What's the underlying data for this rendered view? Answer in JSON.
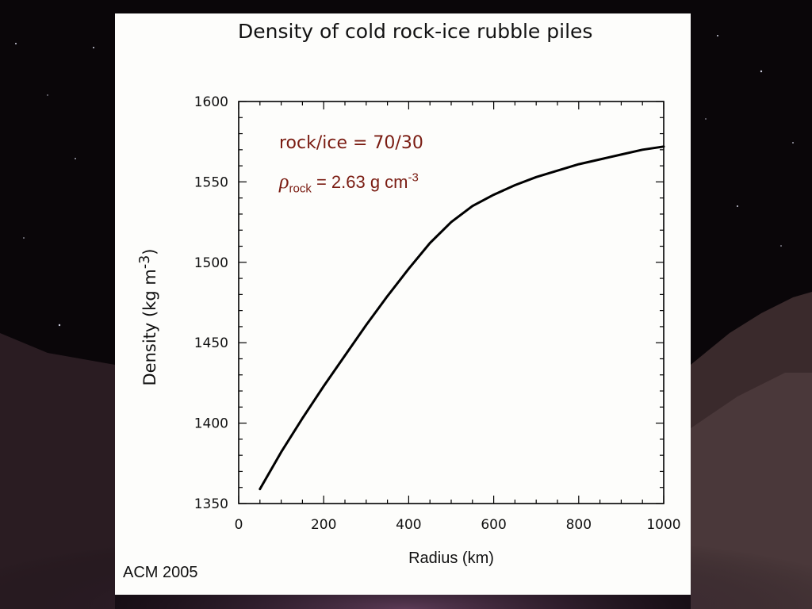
{
  "chart_data": {
    "type": "line",
    "title": "Density of cold rock-ice rubble piles",
    "xlabel": "Radius (km)",
    "ylabel_text": "Density (kg m",
    "ylabel_sup": "-3",
    "ylabel_close": ")",
    "xlim": [
      0,
      1000
    ],
    "ylim": [
      1350,
      1600
    ],
    "x_ticks": [
      0,
      200,
      400,
      600,
      800,
      1000
    ],
    "y_ticks": [
      1350,
      1400,
      1450,
      1500,
      1550,
      1600
    ],
    "grid": false,
    "series": [
      {
        "color": "#000000",
        "x": [
          50,
          100,
          150,
          200,
          250,
          300,
          350,
          400,
          450,
          500,
          550,
          600,
          650,
          700,
          750,
          800,
          850,
          900,
          950,
          1000
        ],
        "y": [
          1359,
          1382,
          1403,
          1423,
          1442,
          1461,
          1479,
          1496,
          1512,
          1525,
          1535,
          1542,
          1548,
          1553,
          1557,
          1561,
          1564,
          1567,
          1570,
          1572
        ]
      }
    ],
    "annotations": {
      "ratio": "rock/ice = 70/30",
      "rho_symbol": "ρ",
      "rho_sub": "rock",
      "rho_value": " = 2.63 g cm",
      "rho_sup": "-3"
    }
  },
  "credit": "ACM 2005",
  "colors": {
    "annotation": "#7a1c12",
    "panel": "#fdfdfb",
    "background": "#0a0609"
  }
}
